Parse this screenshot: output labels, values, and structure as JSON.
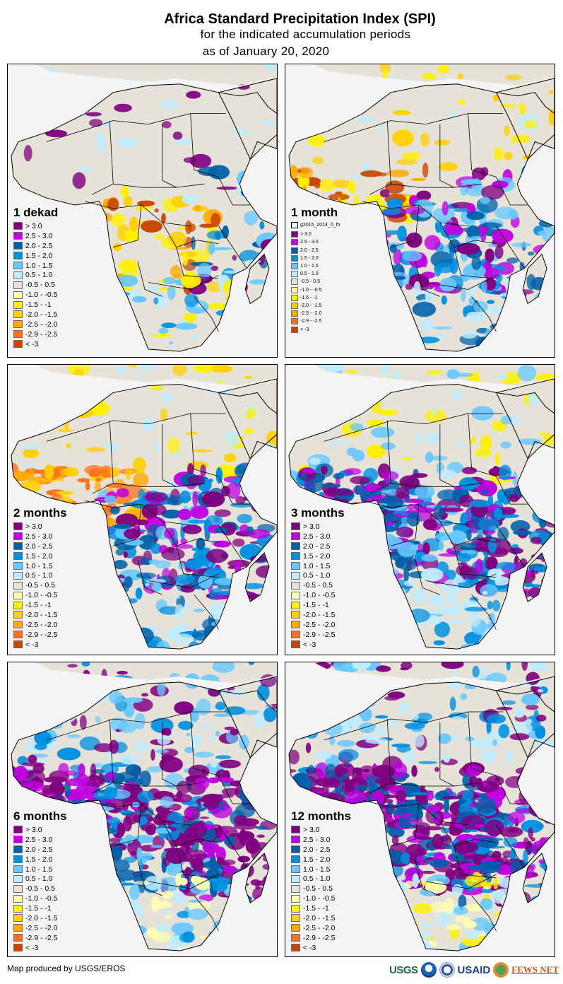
{
  "title": {
    "main": "Africa Standard Precipitation Index (SPI)",
    "sub": "for the indicated accumulation periods",
    "date": "as of January 20, 2020"
  },
  "legend_classes": [
    {
      "label": "> 3.0",
      "color": "#800080"
    },
    {
      "label": "2.5 - 3.0",
      "color": "#c000e0"
    },
    {
      "label": "2.0 - 2.5",
      "color": "#0060a8"
    },
    {
      "label": "1.5 - 2.0",
      "color": "#0090e0"
    },
    {
      "label": "1.0 - 1.5",
      "color": "#66c8ff"
    },
    {
      "label": "0.5 - 1.0",
      "color": "#c0ecff"
    },
    {
      "label": "-0.5 - 0.5",
      "color": "#e6e2d8"
    },
    {
      "label": "-1.0 - -0.5",
      "color": "#ffffb0"
    },
    {
      "label": "-1.5 - -1",
      "color": "#fff000"
    },
    {
      "label": "-2.0 - -1.5",
      "color": "#ffd000"
    },
    {
      "label": "-2.5 - -2.0",
      "color": "#ffa800"
    },
    {
      "label": "-2.9 - -2.5",
      "color": "#ff7020"
    },
    {
      "label": "< -3",
      "color": "#c84400"
    }
  ],
  "panels": [
    {
      "id": "1dekad",
      "title": "1 dekad",
      "extra_legend": null
    },
    {
      "id": "1month",
      "title": "1 month",
      "extra_legend": "g2015_2014_0_fn"
    },
    {
      "id": "2months",
      "title": "2 months",
      "extra_legend": null
    },
    {
      "id": "3months",
      "title": "3 months",
      "extra_legend": null
    },
    {
      "id": "6months",
      "title": "6 months",
      "extra_legend": null
    },
    {
      "id": "12months",
      "title": "12 months",
      "extra_legend": null
    }
  ],
  "colors": {
    "land_neutral": "#e6e2d8",
    "ocean": "#f4f4f4",
    "border": "#000000"
  },
  "footer": {
    "credit": "Map produced by USGS/EROS",
    "logos": [
      "USGS",
      "NOAA",
      "USAID",
      "FEWS NET"
    ]
  }
}
